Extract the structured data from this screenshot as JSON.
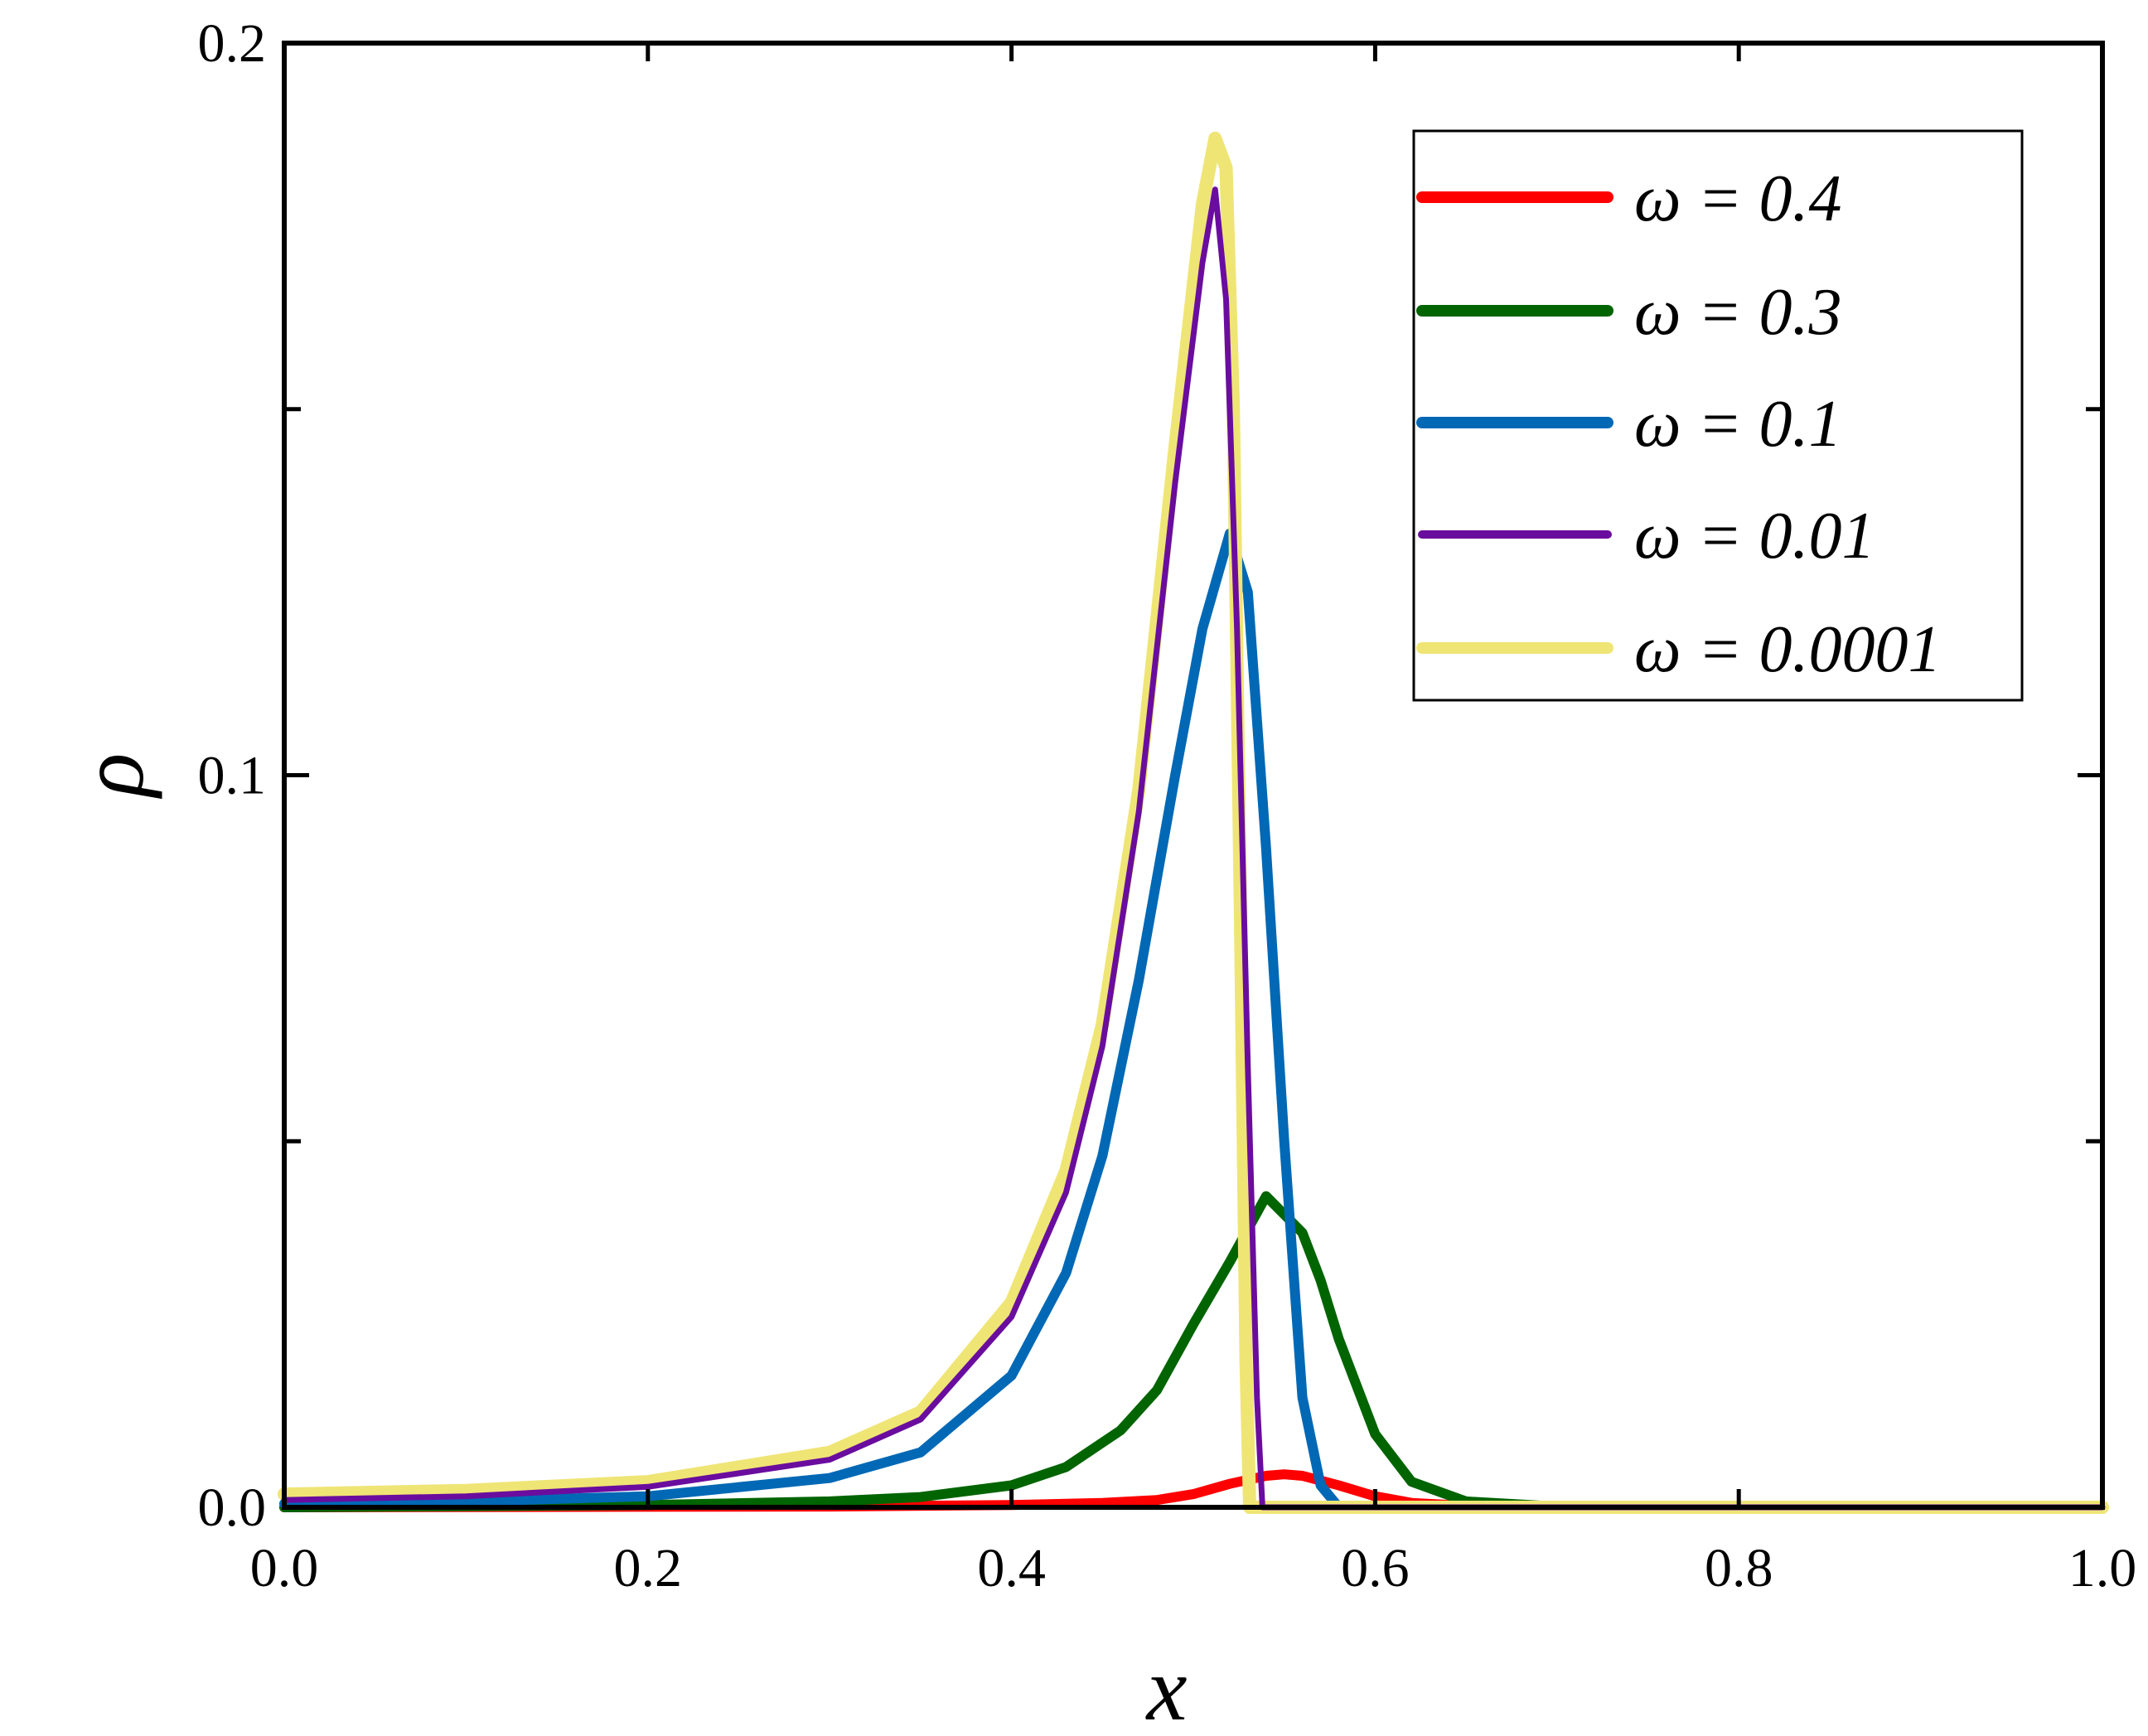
{
  "chart_data": {
    "type": "line",
    "xlabel": "x",
    "ylabel": "ρ",
    "xlim": [
      0,
      1
    ],
    "ylim": [
      0,
      0.2
    ],
    "x_ticks": [
      "0.0",
      "0.2",
      "0.4",
      "0.6",
      "0.8",
      "1.0"
    ],
    "y_ticks": [
      "0.0",
      "0.1",
      "0.2"
    ],
    "y_tick_values": [
      0,
      0.1,
      0.2
    ],
    "y_minor_ticks": [
      0.05,
      0.15
    ],
    "grid": false,
    "legend_position": "top-right",
    "series": [
      {
        "name": "ω = 0.4",
        "color": "#ff0000",
        "points": [
          [
            0.0,
            0.0
          ],
          [
            0.3,
            0.0001
          ],
          [
            0.4,
            0.0003
          ],
          [
            0.45,
            0.0006
          ],
          [
            0.48,
            0.001
          ],
          [
            0.5,
            0.0018
          ],
          [
            0.52,
            0.0032
          ],
          [
            0.54,
            0.0043
          ],
          [
            0.55,
            0.0045
          ],
          [
            0.56,
            0.0043
          ],
          [
            0.58,
            0.003
          ],
          [
            0.6,
            0.0015
          ],
          [
            0.62,
            0.0006
          ],
          [
            0.65,
            0.0002
          ],
          [
            0.7,
            0.0
          ],
          [
            1.0,
            0.0
          ]
        ]
      },
      {
        "name": "ω = 0.3",
        "color": "#006400",
        "points": [
          [
            0.0,
            0.0
          ],
          [
            0.2,
            0.0003
          ],
          [
            0.3,
            0.0008
          ],
          [
            0.35,
            0.0014
          ],
          [
            0.4,
            0.003
          ],
          [
            0.43,
            0.0055
          ],
          [
            0.46,
            0.0105
          ],
          [
            0.48,
            0.016
          ],
          [
            0.5,
            0.025
          ],
          [
            0.52,
            0.0335
          ],
          [
            0.54,
            0.0425
          ],
          [
            0.56,
            0.0375
          ],
          [
            0.57,
            0.031
          ],
          [
            0.58,
            0.023
          ],
          [
            0.6,
            0.01
          ],
          [
            0.62,
            0.0035
          ],
          [
            0.65,
            0.0008
          ],
          [
            0.7,
            0.0001
          ],
          [
            1.0,
            0.0
          ]
        ]
      },
      {
        "name": "ω = 0.1",
        "color": "#0068b5",
        "points": [
          [
            0.0,
            0.0005
          ],
          [
            0.1,
            0.0008
          ],
          [
            0.2,
            0.0015
          ],
          [
            0.3,
            0.004
          ],
          [
            0.35,
            0.0075
          ],
          [
            0.4,
            0.018
          ],
          [
            0.43,
            0.032
          ],
          [
            0.45,
            0.048
          ],
          [
            0.47,
            0.072
          ],
          [
            0.49,
            0.1
          ],
          [
            0.505,
            0.12
          ],
          [
            0.52,
            0.133
          ],
          [
            0.53,
            0.125
          ],
          [
            0.54,
            0.09
          ],
          [
            0.55,
            0.05
          ],
          [
            0.56,
            0.015
          ],
          [
            0.57,
            0.003
          ],
          [
            0.58,
            0.0
          ],
          [
            1.0,
            0.0
          ]
        ]
      },
      {
        "name": "ω = 0.01",
        "color": "#6a0d9e",
        "points": [
          [
            0.0,
            0.001
          ],
          [
            0.1,
            0.0015
          ],
          [
            0.2,
            0.0028
          ],
          [
            0.3,
            0.0065
          ],
          [
            0.35,
            0.012
          ],
          [
            0.4,
            0.026
          ],
          [
            0.43,
            0.043
          ],
          [
            0.45,
            0.063
          ],
          [
            0.47,
            0.095
          ],
          [
            0.49,
            0.14
          ],
          [
            0.505,
            0.17
          ],
          [
            0.512,
            0.18
          ],
          [
            0.518,
            0.165
          ],
          [
            0.524,
            0.12
          ],
          [
            0.53,
            0.06
          ],
          [
            0.535,
            0.015
          ],
          [
            0.538,
            0.0
          ],
          [
            1.0,
            0.0
          ]
        ]
      },
      {
        "name": "ω = 0.0001",
        "color": "#efe575",
        "points": [
          [
            0.0,
            0.0018
          ],
          [
            0.1,
            0.0023
          ],
          [
            0.2,
            0.0035
          ],
          [
            0.3,
            0.0075
          ],
          [
            0.35,
            0.013
          ],
          [
            0.4,
            0.028
          ],
          [
            0.43,
            0.046
          ],
          [
            0.45,
            0.066
          ],
          [
            0.47,
            0.098
          ],
          [
            0.49,
            0.145
          ],
          [
            0.505,
            0.178
          ],
          [
            0.512,
            0.187
          ],
          [
            0.518,
            0.183
          ],
          [
            0.522,
            0.15
          ],
          [
            0.526,
            0.08
          ],
          [
            0.529,
            0.02
          ],
          [
            0.531,
            0.0
          ],
          [
            1.0,
            0.0
          ]
        ]
      }
    ]
  }
}
